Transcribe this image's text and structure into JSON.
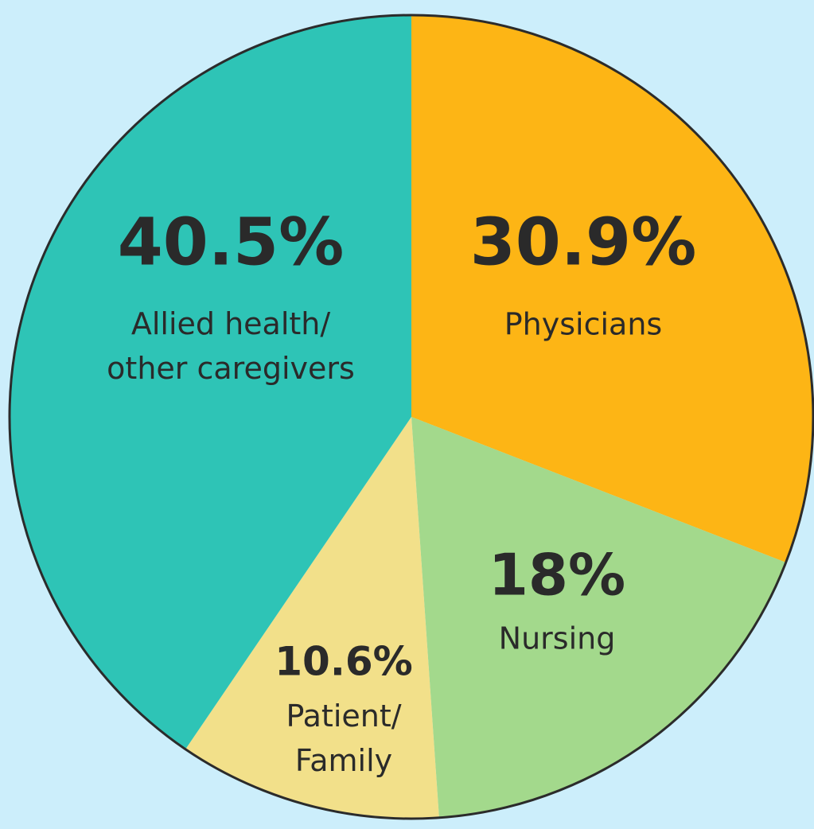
{
  "chart_data": {
    "type": "pie",
    "categories": [
      "Physicians",
      "Nursing",
      "Patient/\nFamily",
      "Allied health/\nother caregivers"
    ],
    "values": [
      30.9,
      18,
      10.6,
      40.5
    ],
    "value_labels": [
      "30.9%",
      "18%",
      "10.6%",
      "40.5%"
    ],
    "colors": [
      "#fdb515",
      "#a3d98c",
      "#f2e08a",
      "#2ec4b6"
    ]
  }
}
